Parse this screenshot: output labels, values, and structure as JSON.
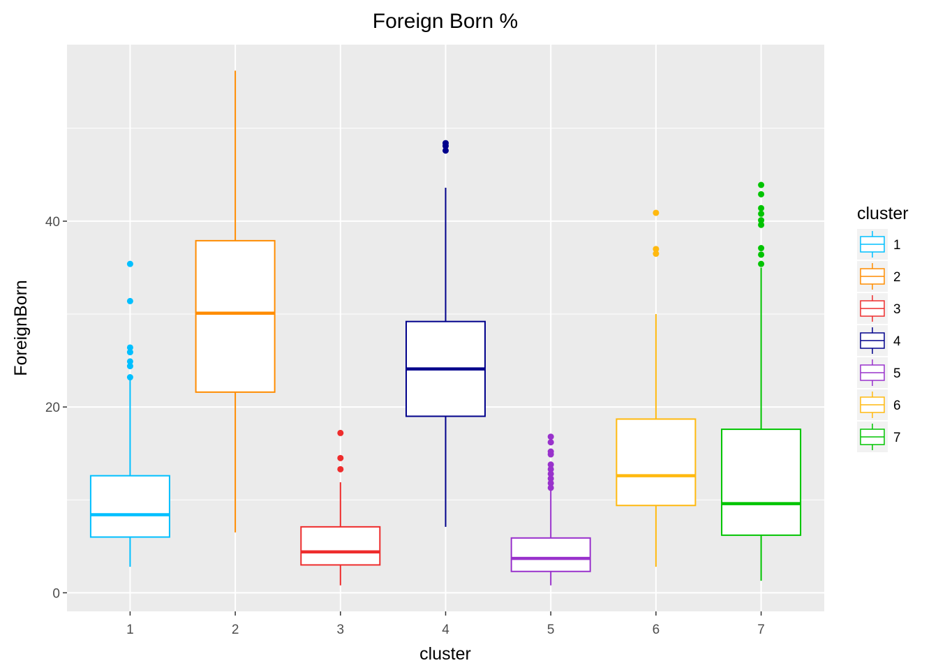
{
  "chart_data": {
    "type": "boxplot",
    "title": "Foreign Born %",
    "xlabel": "cluster",
    "ylabel": "ForeignBorn",
    "ylim": [
      -2,
      59
    ],
    "yticks": [
      0,
      20,
      40
    ],
    "grid": true,
    "legend": {
      "title": "cluster",
      "position": "right"
    },
    "categories": [
      "1",
      "2",
      "3",
      "4",
      "5",
      "6",
      "7"
    ],
    "series": [
      {
        "name": "1",
        "color": "#00BFFF",
        "lower_whisker": 2.8,
        "q1": 6.0,
        "median": 8.4,
        "q3": 12.6,
        "upper_whisker": 23.0,
        "outliers": [
          23.2,
          24.4,
          24.9,
          25.9,
          26.4,
          31.4,
          35.4
        ]
      },
      {
        "name": "2",
        "color": "#FF8C00",
        "lower_whisker": 6.5,
        "q1": 21.6,
        "median": 30.1,
        "q3": 37.9,
        "upper_whisker": 56.2,
        "outliers": []
      },
      {
        "name": "3",
        "color": "#EE2C2C",
        "lower_whisker": 0.8,
        "q1": 3.0,
        "median": 4.4,
        "q3": 7.1,
        "upper_whisker": 11.9,
        "outliers": [
          13.3,
          14.5,
          17.2
        ]
      },
      {
        "name": "4",
        "color": "#00008B",
        "lower_whisker": 7.1,
        "q1": 19.0,
        "median": 24.1,
        "q3": 29.2,
        "upper_whisker": 43.6,
        "outliers": [
          47.6,
          48.1,
          48.4
        ]
      },
      {
        "name": "5",
        "color": "#9932CC",
        "lower_whisker": 0.8,
        "q1": 2.3,
        "median": 3.7,
        "q3": 5.9,
        "upper_whisker": 11.0,
        "outliers": [
          11.3,
          11.8,
          12.3,
          12.8,
          13.3,
          13.8,
          14.9,
          15.2,
          16.2,
          16.8
        ]
      },
      {
        "name": "6",
        "color": "#FFB90F",
        "lower_whisker": 2.8,
        "q1": 9.4,
        "median": 12.6,
        "q3": 18.7,
        "upper_whisker": 30.0,
        "outliers": [
          36.5,
          37.0,
          40.9
        ]
      },
      {
        "name": "7",
        "color": "#00C400",
        "lower_whisker": 1.3,
        "q1": 6.2,
        "median": 9.6,
        "q3": 17.6,
        "upper_whisker": 35.0,
        "outliers": [
          35.4,
          36.4,
          37.1,
          39.6,
          40.1,
          40.8,
          41.4,
          42.9,
          43.9
        ]
      }
    ]
  }
}
